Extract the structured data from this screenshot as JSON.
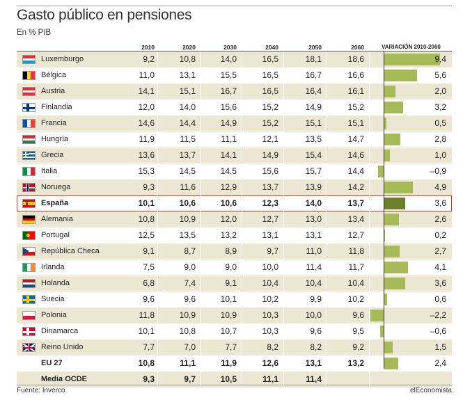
{
  "header": {
    "title": "Gasto público en pensiones",
    "subtitle": "En % PIB",
    "years": [
      "2010",
      "2020",
      "2030",
      "2040",
      "2050",
      "2060"
    ],
    "variation_label": "VARIACIÓN 2010-2060"
  },
  "footer": {
    "source": "Fuente: Inverco.",
    "brand": "elEconomista"
  },
  "chart_data": {
    "type": "table",
    "title": "Gasto público en pensiones",
    "subtitle": "En % PIB",
    "columns": [
      "2010",
      "2020",
      "2030",
      "2040",
      "2050",
      "2060",
      "VARIACIÓN 2010-2060"
    ],
    "highlight": "España",
    "rows": [
      {
        "country": "Luxemburgo",
        "flag": "luxembourg",
        "values": [
          "9,2",
          "10,8",
          "14,0",
          "16,5",
          "18,1",
          "18,6"
        ],
        "variation": 9.4,
        "variation_label": "9,4"
      },
      {
        "country": "Bélgica",
        "flag": "belgium",
        "values": [
          "11,0",
          "13,1",
          "15,5",
          "16,5",
          "16,7",
          "16,6"
        ],
        "variation": 5.6,
        "variation_label": "5,6"
      },
      {
        "country": "Austria",
        "flag": "austria",
        "values": [
          "14,1",
          "15,1",
          "16,7",
          "16,5",
          "16,4",
          "16,1"
        ],
        "variation": 2.0,
        "variation_label": "2,0"
      },
      {
        "country": "Finlandia",
        "flag": "finland",
        "values": [
          "12,0",
          "14,0",
          "15,6",
          "15,2",
          "14,9",
          "15,2"
        ],
        "variation": 3.2,
        "variation_label": "3,2"
      },
      {
        "country": "Francia",
        "flag": "france",
        "values": [
          "14,6",
          "14,4",
          "14,9",
          "15,2",
          "15,1",
          "15,1"
        ],
        "variation": 0.5,
        "variation_label": "0,5"
      },
      {
        "country": "Hungría",
        "flag": "hungary",
        "values": [
          "11,9",
          "11,5",
          "11,1",
          "12,1",
          "13,5",
          "14,7"
        ],
        "variation": 2.8,
        "variation_label": "2,8"
      },
      {
        "country": "Grecia",
        "flag": "greece",
        "values": [
          "13,6",
          "13,7",
          "14,1",
          "14,9",
          "15,4",
          "14,6"
        ],
        "variation": 1.0,
        "variation_label": "1,0"
      },
      {
        "country": "Italia",
        "flag": "italy",
        "values": [
          "15,3",
          "14,5",
          "14,5",
          "15,6",
          "15,7",
          "14,4"
        ],
        "variation": -0.9,
        "variation_label": "–0,9"
      },
      {
        "country": "Noruega",
        "flag": "norway",
        "values": [
          "9,3",
          "11,6",
          "12,9",
          "13,7",
          "13,9",
          "14,2"
        ],
        "variation": 4.9,
        "variation_label": "4,9"
      },
      {
        "country": "España",
        "flag": "spain",
        "values": [
          "10,1",
          "10,6",
          "10,6",
          "12,3",
          "14,0",
          "13,7"
        ],
        "variation": 3.6,
        "variation_label": "3,6",
        "bold": true
      },
      {
        "country": "Alemania",
        "flag": "germany",
        "values": [
          "10,8",
          "10,9",
          "12,0",
          "12,7",
          "13,0",
          "13,4"
        ],
        "variation": 2.6,
        "variation_label": "2,6"
      },
      {
        "country": "Portugal",
        "flag": "portugal",
        "values": [
          "12,5",
          "13,5",
          "13,2",
          "13,1",
          "13,1",
          "12,7"
        ],
        "variation": 0.2,
        "variation_label": "0,2"
      },
      {
        "country": "República Checa",
        "flag": "czech",
        "values": [
          "9,1",
          "8,7",
          "8,9",
          "9,7",
          "11,0",
          "11,8"
        ],
        "variation": 2.7,
        "variation_label": "2,7"
      },
      {
        "country": "Irlanda",
        "flag": "ireland",
        "values": [
          "7,5",
          "9,0",
          "9,0",
          "10,0",
          "11,4",
          "11,7"
        ],
        "variation": 4.1,
        "variation_label": "4,1"
      },
      {
        "country": "Holanda",
        "flag": "netherlands",
        "values": [
          "6,8",
          "7,4",
          "9,1",
          "10,4",
          "10,4",
          "10,4"
        ],
        "variation": 3.6,
        "variation_label": "3,6"
      },
      {
        "country": "Suecia",
        "flag": "sweden",
        "values": [
          "9,6",
          "9,6",
          "10,1",
          "10,2",
          "9,9",
          "10,2"
        ],
        "variation": 0.6,
        "variation_label": "0,6"
      },
      {
        "country": "Polonia",
        "flag": "poland",
        "values": [
          "11,8",
          "10,9",
          "10,9",
          "10,3",
          "10,0",
          "9,6"
        ],
        "variation": -2.2,
        "variation_label": "–2,2"
      },
      {
        "country": "Dinamarca",
        "flag": "denmark",
        "values": [
          "10,1",
          "10,8",
          "10,7",
          "10,3",
          "9,6",
          "9,5"
        ],
        "variation": -0.6,
        "variation_label": "–0,6"
      },
      {
        "country": "Reino Unido",
        "flag": "uk",
        "values": [
          "7,7",
          "7,0",
          "7,7",
          "8,2",
          "8,2",
          "9,2"
        ],
        "variation": 1.5,
        "variation_label": "1,5"
      },
      {
        "country": "EU 27",
        "flag": "",
        "values": [
          "10,8",
          "11,1",
          "11,9",
          "12,6",
          "13,1",
          "13,2"
        ],
        "variation": 2.4,
        "variation_label": "2,4",
        "bold": true
      },
      {
        "country": "Media OCDE",
        "flag": "",
        "values": [
          "9,3",
          "9,7",
          "10,5",
          "11,1",
          "11,4",
          ""
        ],
        "variation": null,
        "variation_label": "",
        "bold": true
      }
    ]
  },
  "colors": {
    "row_shade": "#ebe7d2",
    "bar": "#a8b957",
    "bar_highlight": "#6e7f2c",
    "highlight_border": "#c0392b"
  }
}
